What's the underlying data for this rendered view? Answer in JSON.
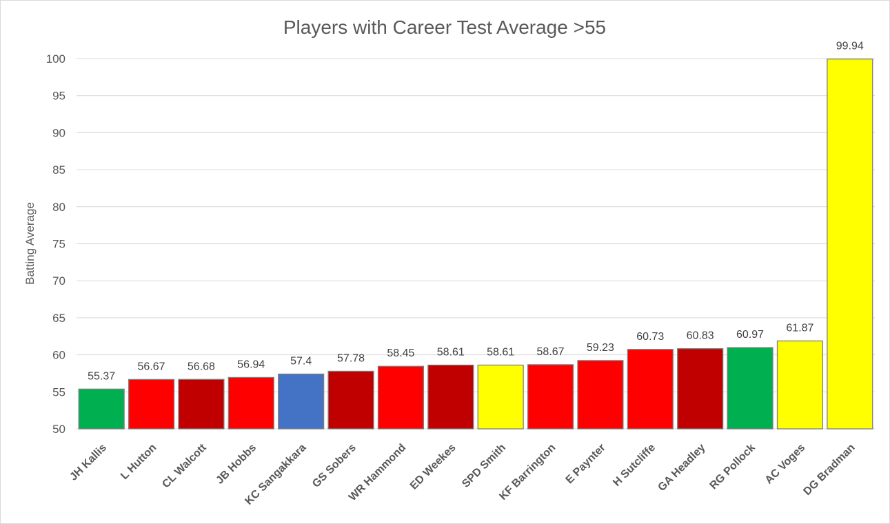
{
  "chart_data": {
    "type": "bar",
    "title": "Players with Career Test Average >55",
    "xlabel": "",
    "ylabel": "Batting Average",
    "ylim": [
      50,
      100
    ],
    "yticks": [
      50,
      55,
      60,
      65,
      70,
      75,
      80,
      85,
      90,
      95,
      100
    ],
    "grid": true,
    "legend": "none",
    "categories": [
      "JH Kallis",
      "L Hutton",
      "CL Walcott",
      "JB Hobbs",
      "KC Sangakkara",
      "GS Sobers",
      "WR Hammond",
      "ED Weekes",
      "SPD Smith",
      "KF Barrington",
      "E Paynter",
      "H Sutcliffe",
      "GA Headley",
      "RG Pollock",
      "AC Voges",
      "DG Bradman"
    ],
    "values": [
      55.37,
      56.67,
      56.68,
      56.94,
      57.4,
      57.78,
      58.45,
      58.61,
      58.61,
      58.67,
      59.23,
      60.73,
      60.83,
      60.97,
      61.87,
      99.94
    ],
    "colors": [
      "#00b050",
      "#ff0000",
      "#c00000",
      "#ff0000",
      "#4472c4",
      "#c00000",
      "#ff0000",
      "#c00000",
      "#ffff00",
      "#ff0000",
      "#ff0000",
      "#ff0000",
      "#c00000",
      "#00b050",
      "#ffff00",
      "#ffff00"
    ]
  }
}
